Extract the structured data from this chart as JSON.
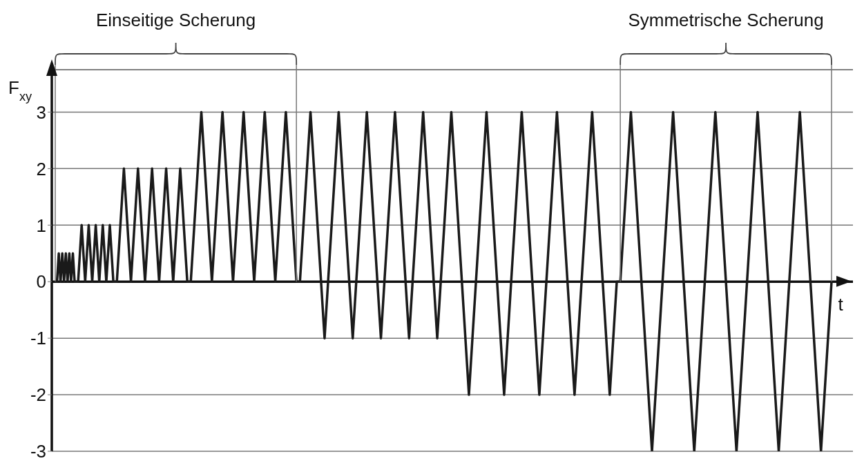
{
  "chart_data": {
    "type": "line",
    "xlabel": "t",
    "ylabel": "F$_{xy}$",
    "ylim": [
      -3,
      3.75
    ],
    "yticks": [
      -3,
      -2,
      -1,
      0,
      1,
      2,
      3
    ],
    "tick_labels": "y",
    "grid": "y",
    "marker": "none",
    "line_style": "solid",
    "categories": [
      null,
      null,
      null,
      null,
      null,
      null,
      null,
      null,
      null,
      null,
      null,
      null,
      null,
      null,
      null,
      null,
      null,
      null,
      null,
      null,
      null,
      null,
      null,
      null,
      null,
      null,
      null,
      null,
      null,
      null,
      null,
      null,
      null,
      null,
      null,
      null,
      null,
      null,
      null,
      null,
      null,
      null,
      null,
      null,
      null,
      null,
      null,
      null,
      null,
      null,
      null,
      null,
      null,
      null,
      null,
      null,
      null,
      null,
      null,
      null,
      null,
      null,
      null,
      null,
      null,
      null,
      null,
      null,
      null,
      null,
      null,
      null,
      null,
      null,
      null,
      null,
      null,
      null,
      null,
      null,
      null,
      null,
      null,
      null,
      null,
      null,
      null,
      null,
      null,
      null,
      null,
      null,
      null,
      null,
      null,
      null,
      null,
      null,
      null,
      null,
      null,
      null,
      null,
      null,
      null,
      null,
      null,
      null,
      null,
      null,
      null,
      null,
      null,
      null,
      null,
      null,
      null,
      null,
      null,
      null,
      null,
      null,
      null,
      null,
      null,
      null,
      null,
      null,
      null,
      null,
      null,
      null,
      null,
      null,
      null,
      null,
      null,
      null,
      null,
      null,
      null,
      null,
      null,
      null,
      null,
      null,
      null,
      null,
      null,
      null,
      null,
      null,
      null,
      null,
      null,
      null,
      null,
      null,
      null,
      null,
      null,
      null,
      null,
      null,
      null,
      null,
      null,
      null,
      null,
      null,
      null,
      null,
      null,
      null,
      null,
      null,
      null,
      null,
      null,
      null,
      null,
      null,
      null,
      null,
      null,
      null,
      null,
      null,
      null,
      null,
      null,
      null,
      null,
      null,
      null,
      null,
      null,
      null,
      null,
      null,
      null,
      null,
      null,
      null,
      null,
      null,
      null,
      null,
      null,
      null,
      null,
      null,
      null,
      null,
      null,
      null,
      null,
      null,
      null,
      null,
      null,
      null,
      null,
      null,
      null,
      null,
      null,
      null,
      null,
      null,
      null,
      null,
      null,
      null,
      null,
      null,
      null,
      null,
      null,
      null,
      null,
      null,
      null,
      null,
      null,
      null,
      null,
      null,
      null,
      null,
      null,
      null,
      null,
      null,
      null,
      null,
      null,
      null,
      null,
      null,
      null,
      null,
      null,
      null,
      null,
      null,
      null,
      null,
      null,
      null,
      null,
      null,
      null,
      null,
      null,
      null,
      null,
      null,
      null,
      null,
      null,
      null,
      null,
      null,
      null,
      null,
      null,
      null,
      null,
      null,
      null,
      null,
      null,
      null,
      null,
      null,
      null,
      null,
      null,
      null,
      null,
      null,
      null,
      null,
      null,
      null,
      null,
      null,
      null,
      null,
      null,
      null,
      null,
      null,
      null,
      null,
      null,
      null,
      null,
      null,
      null,
      null,
      null,
      null,
      null,
      null,
      null,
      null,
      null,
      null,
      null,
      null,
      null,
      null,
      null,
      null,
      null,
      null,
      null,
      null,
      null,
      null,
      null,
      null,
      null,
      null,
      null,
      null,
      null,
      null,
      null,
      null,
      null,
      null,
      null,
      null,
      null,
      null,
      null,
      null,
      null,
      null,
      null,
      null,
      null,
      null,
      null,
      null,
      null,
      null,
      null,
      null,
      null,
      null,
      null,
      null,
      null,
      null,
      null,
      null,
      null,
      null,
      null,
      null,
      null,
      null,
      null,
      null,
      null,
      null,
      null,
      null,
      null,
      null,
      null,
      null,
      null,
      null,
      null,
      null,
      null,
      null,
      null,
      null,
      null,
      null,
      null,
      null,
      null,
      null,
      null,
      null,
      null,
      null,
      null,
      null,
      null,
      null,
      null,
      null,
      null,
      null,
      null,
      null,
      null,
      null,
      null,
      null,
      null,
      null,
      null,
      null,
      null,
      null,
      null,
      null,
      null,
      null,
      null,
      null,
      null,
      null
    ],
    "series": [
      {
        "color": "#1a1a1a",
        "values": [
          0,
          0,
          0.5,
          0,
          0.5,
          0,
          0.5,
          0,
          0.5,
          0,
          0.5,
          0,
          0,
          0,
          0.5,
          1,
          0.5,
          0,
          0.5,
          1,
          0.5,
          0,
          0.5,
          1,
          0.5,
          0,
          0.5,
          1,
          0.5,
          0,
          0.5,
          1,
          0.5,
          0,
          0,
          0,
          0.5,
          1,
          1.5,
          2,
          1.5,
          1,
          0.5,
          0,
          0.5,
          1,
          1.5,
          2,
          1.5,
          1,
          0.5,
          0,
          0.5,
          1,
          1.5,
          2,
          1.5,
          1,
          0.5,
          0,
          0.5,
          1,
          1.5,
          2,
          1.5,
          1,
          0.5,
          0,
          0.5,
          1,
          1.5,
          2,
          1.5,
          1,
          0.5,
          0,
          0,
          0,
          0.5,
          1,
          1.5,
          2,
          2.5,
          3,
          2.5,
          2,
          1.5,
          1,
          0.5,
          0,
          0.5,
          1,
          1.5,
          2,
          2.5,
          3,
          2.5,
          2,
          1.5,
          1,
          0.5,
          0,
          0.5,
          1,
          1.5,
          2,
          2.5,
          3,
          2.5,
          2,
          1.5,
          1,
          0.5,
          0,
          0.5,
          1,
          1.5,
          2,
          2.5,
          3,
          2.5,
          2,
          1.5,
          1,
          0.5,
          0,
          0.5,
          1,
          1.5,
          2,
          2.5,
          3,
          2.5,
          2,
          1.5,
          1,
          0.5,
          0,
          0,
          0,
          0.5,
          1,
          1.5,
          2,
          2.5,
          3,
          2.5,
          2,
          1.5,
          1,
          0.5,
          0,
          -0.5,
          -1,
          -0.5,
          0,
          0.5,
          1,
          1.5,
          2,
          2.5,
          3,
          2.5,
          2,
          1.5,
          1,
          0.5,
          0,
          -0.5,
          -1,
          -0.5,
          0,
          0.5,
          1,
          1.5,
          2,
          2.5,
          3,
          2.5,
          2,
          1.5,
          1,
          0.5,
          0,
          -0.5,
          -1,
          -0.5,
          0,
          0.5,
          1,
          1.5,
          2,
          2.5,
          3,
          2.5,
          2,
          1.5,
          1,
          0.5,
          0,
          -0.5,
          -1,
          -0.5,
          0,
          0.5,
          1,
          1.5,
          2,
          2.5,
          3,
          2.5,
          2,
          1.5,
          1,
          0.5,
          0,
          -0.5,
          -1,
          -0.5,
          0,
          0.5,
          1,
          1.5,
          2,
          2.5,
          3,
          2.5,
          2,
          1.5,
          1,
          0.5,
          0,
          -0.5,
          -1,
          -1.5,
          -2,
          -1.5,
          -1,
          -0.5,
          0,
          0.5,
          1,
          1.5,
          2,
          2.5,
          3,
          2.5,
          2,
          1.5,
          1,
          0.5,
          0,
          -0.5,
          -1,
          -1.5,
          -2,
          -1.5,
          -1,
          -0.5,
          0,
          0.5,
          1,
          1.5,
          2,
          2.5,
          3,
          2.5,
          2,
          1.5,
          1,
          0.5,
          0,
          -0.5,
          -1,
          -1.5,
          -2,
          -1.5,
          -1,
          -0.5,
          0,
          0.5,
          1,
          1.5,
          2,
          2.5,
          3,
          2.5,
          2,
          1.5,
          1,
          0.5,
          0,
          -0.5,
          -1,
          -1.5,
          -2,
          -1.5,
          -1,
          -0.5,
          0,
          0.5,
          1,
          1.5,
          2,
          2.5,
          3,
          2.5,
          2,
          1.5,
          1,
          0.5,
          0,
          -0.5,
          -1,
          -1.5,
          -2,
          -1.5,
          -1,
          -0.5,
          0,
          0,
          0,
          0.5,
          1,
          1.5,
          2,
          2.5,
          3,
          2.5,
          2,
          1.5,
          1,
          0.5,
          0,
          -0.5,
          -1,
          -1.5,
          -2,
          -2.5,
          -3,
          -2.5,
          -2,
          -1.5,
          -1,
          -0.5,
          0,
          0.5,
          1,
          1.5,
          2,
          2.5,
          3,
          2.5,
          2,
          1.5,
          1,
          0.5,
          0,
          -0.5,
          -1,
          -1.5,
          -2,
          -2.5,
          -3,
          -2.5,
          -2,
          -1.5,
          -1,
          -0.5,
          0,
          0.5,
          1,
          1.5,
          2,
          2.5,
          3,
          2.5,
          2,
          1.5,
          1,
          0.5,
          0,
          -0.5,
          -1,
          -1.5,
          -2,
          -2.5,
          -3,
          -2.5,
          -2,
          -1.5,
          -1,
          -0.5,
          0,
          0.5,
          1,
          1.5,
          2,
          2.5,
          3,
          2.5,
          2,
          1.5,
          1,
          0.5,
          0,
          -0.5,
          -1,
          -1.5,
          -2,
          -2.5,
          -3,
          -2.5,
          -2,
          -1.5,
          -1,
          -0.5,
          0,
          0.5,
          1,
          1.5,
          2,
          2.5,
          3,
          2.5,
          2,
          1.5,
          1,
          0.5,
          0,
          -0.5,
          -1,
          -1.5,
          -2,
          -2.5,
          -3,
          -2.5,
          -2,
          -1.5,
          -1,
          -0.5,
          0
        ]
      }
    ],
    "annotations": [
      "Einseitige Scherung",
      "Symmetrische Scherung"
    ]
  }
}
